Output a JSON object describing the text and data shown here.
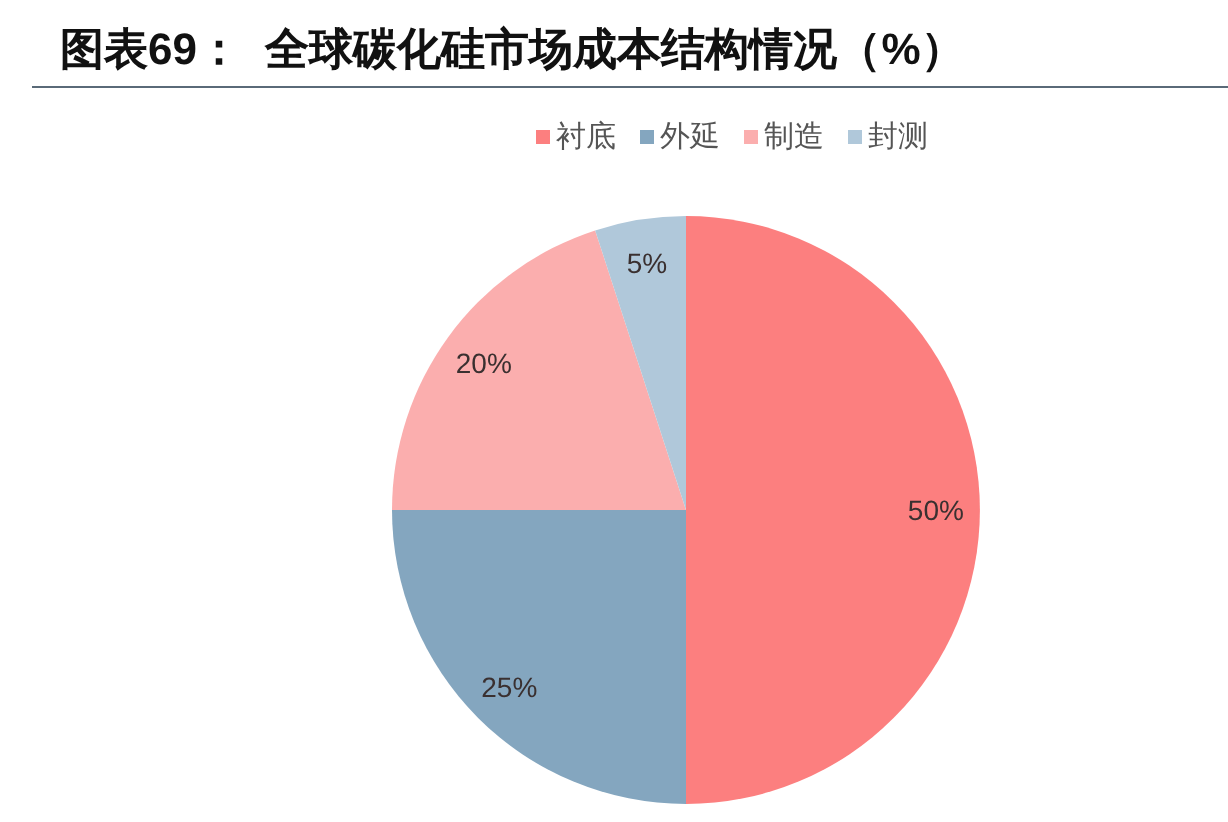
{
  "chart_data": {
    "type": "pie",
    "title": "图表69：  全球碳化硅市场成本结构情况（%）",
    "categories": [
      "衬底",
      "外延",
      "制造",
      "封测"
    ],
    "values": [
      50,
      25,
      20,
      5
    ],
    "colors": [
      "#fc7f7f",
      "#84a6bf",
      "#fbaeae",
      "#b0c8da"
    ],
    "value_labels": [
      "50%",
      "25%",
      "20%",
      "5%"
    ],
    "legend": "top"
  }
}
